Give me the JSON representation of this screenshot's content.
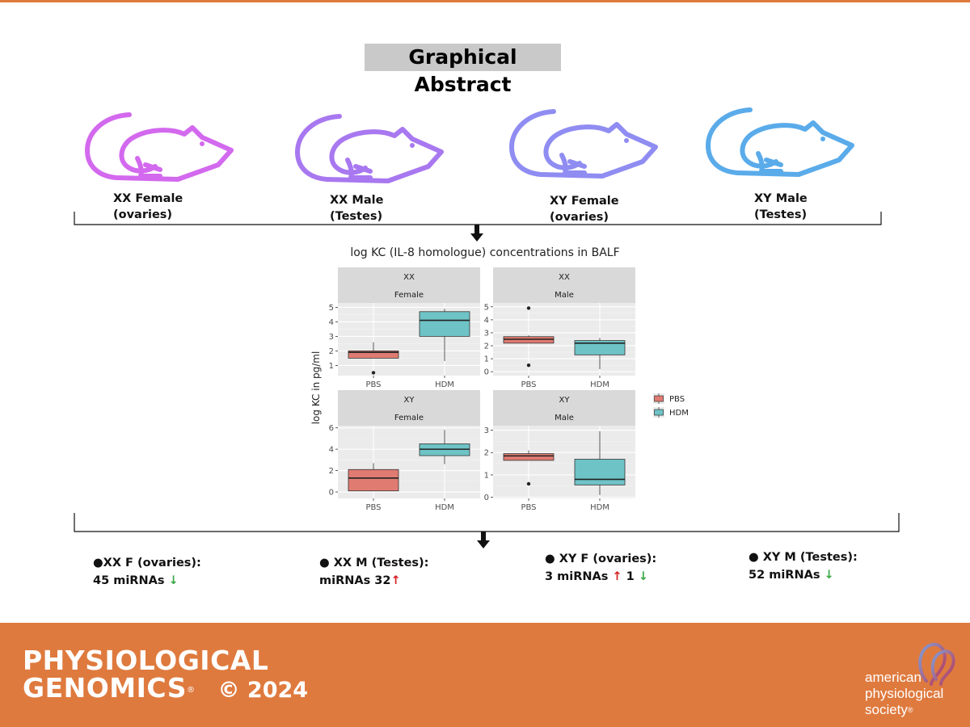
{
  "title": "Graphical Abstract",
  "mice": [
    {
      "line1": "XX Female",
      "line2": "(ovaries)",
      "color": "#d369ee"
    },
    {
      "line1": "XX Male",
      "line2": "(Testes)",
      "color": "#a878f0"
    },
    {
      "line1": "XY Female",
      "line2": "(ovaries)",
      "color": "#8f8cf2"
    },
    {
      "line1": "XY Male",
      "line2": "(Testes)",
      "color": "#5aabea"
    }
  ],
  "chart_data": {
    "type": "box",
    "title": "log KC (IL-8 homologue) concentrations in BALF",
    "ylabel": "log KC in pg/ml",
    "categories": [
      "PBS",
      "HDM"
    ],
    "legend": {
      "placement": "right",
      "entries": [
        {
          "name": "PBS",
          "color": "#e07b72"
        },
        {
          "name": "HDM",
          "color": "#6ec3c6"
        }
      ]
    },
    "panels": [
      {
        "strip1": "XX",
        "strip2": "Female",
        "ylim": [
          0.3,
          5.3
        ],
        "ticks": [
          1,
          2,
          3,
          4,
          5
        ],
        "boxes": [
          {
            "group": "PBS",
            "whisker_low": 1.5,
            "q1": 1.5,
            "median": 1.9,
            "q3": 2.0,
            "whisker_high": 2.6,
            "outliers": [
              0.5
            ]
          },
          {
            "group": "HDM",
            "whisker_low": 1.3,
            "q1": 3.0,
            "median": 4.1,
            "q3": 4.7,
            "whisker_high": 4.9,
            "outliers": []
          }
        ]
      },
      {
        "strip1": "XX",
        "strip2": "Male",
        "ylim": [
          -0.3,
          5.3
        ],
        "ticks": [
          0,
          1,
          2,
          3,
          4,
          5
        ],
        "boxes": [
          {
            "group": "PBS",
            "whisker_low": 2.2,
            "q1": 2.2,
            "median": 2.5,
            "q3": 2.7,
            "whisker_high": 2.8,
            "outliers": [
              0.5,
              4.9
            ]
          },
          {
            "group": "HDM",
            "whisker_low": 0.2,
            "q1": 1.3,
            "median": 2.2,
            "q3": 2.4,
            "whisker_high": 2.6,
            "outliers": []
          }
        ]
      },
      {
        "strip1": "XY",
        "strip2": "Female",
        "ylim": [
          -0.6,
          6.2
        ],
        "ticks": [
          0,
          2,
          4,
          6
        ],
        "boxes": [
          {
            "group": "PBS",
            "whisker_low": 0.1,
            "q1": 0.1,
            "median": 1.3,
            "q3": 2.1,
            "whisker_high": 2.7,
            "outliers": []
          },
          {
            "group": "HDM",
            "whisker_low": 2.6,
            "q1": 3.4,
            "median": 4.0,
            "q3": 4.5,
            "whisker_high": 5.8,
            "outliers": []
          }
        ]
      },
      {
        "strip1": "XY",
        "strip2": "Male",
        "ylim": [
          -0.05,
          3.2
        ],
        "ticks": [
          0,
          1,
          2,
          3
        ],
        "boxes": [
          {
            "group": "PBS",
            "whisker_low": 1.65,
            "q1": 1.65,
            "median": 1.85,
            "q3": 1.95,
            "whisker_high": 2.1,
            "outliers": [
              0.6
            ]
          },
          {
            "group": "HDM",
            "whisker_low": 0.1,
            "q1": 0.55,
            "median": 0.8,
            "q3": 1.7,
            "whisker_high": 2.95,
            "outliers": []
          }
        ]
      }
    ]
  },
  "results": [
    {
      "heading": "●XX F (ovaries):",
      "t1": "45 miRNAs ",
      "a1": "↓",
      "a1_dir": "down",
      "t2": "",
      "a2": "",
      "a2_dir": "down"
    },
    {
      "heading": "● XX M (Testes):",
      "t1": "miRNAs 32",
      "a1": "↑",
      "a1_dir": "up",
      "t2": "",
      "a2": "",
      "a2_dir": "down"
    },
    {
      "heading": "● XY F (ovaries):",
      "t1": "3 miRNAs ",
      "a1": "↑",
      "a1_dir": "up",
      "t2": " 1 ",
      "a2": "↓",
      "a2_dir": "down"
    },
    {
      "heading": "● XY M (Testes):",
      "t1": "52 miRNAs ",
      "a1": "↓",
      "a1_dir": "down",
      "t2": "",
      "a2": "",
      "a2_dir": "down"
    }
  ],
  "footer": {
    "journal_line1": "PHYSIOLOGICAL",
    "journal_line2": "GENOMICS",
    "registered": "®",
    "year": "© 2024",
    "society_line1": "american",
    "society_line2": "physiological",
    "society_line3": "society",
    "society_mark": "®"
  },
  "colors": {
    "footer": "#df7a3e",
    "arrow_up": "#d32020",
    "arrow_down": "#3aa845"
  }
}
